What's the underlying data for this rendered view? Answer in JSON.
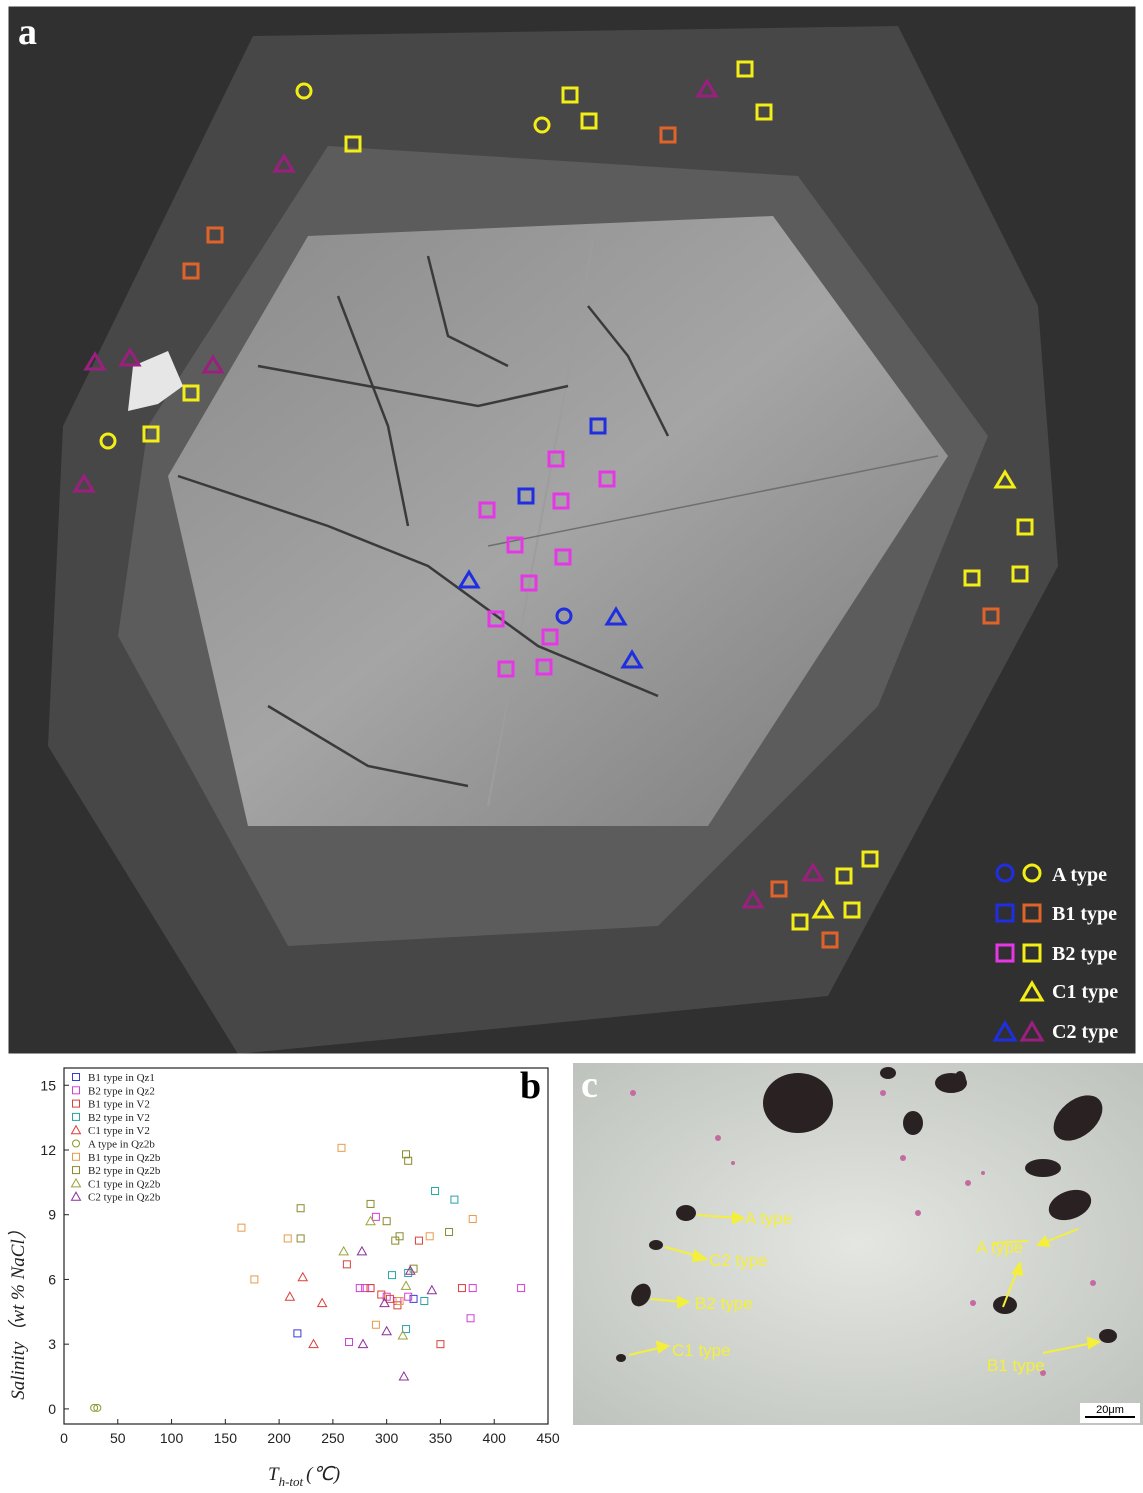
{
  "panels": {
    "a": {
      "letter": "a",
      "legend": [
        {
          "label": "A type"
        },
        {
          "label": "B1 type"
        },
        {
          "label": "B2 type"
        },
        {
          "label": "C1 type"
        },
        {
          "label": "C2 type"
        }
      ]
    },
    "b": {
      "letter": "b"
    },
    "c": {
      "letter": "c",
      "labels": [
        "A type",
        "C2 type",
        "B2 type",
        "C1 type",
        "A type",
        "B1 type"
      ],
      "scale_bar": "20μm"
    }
  },
  "colors": {
    "blue": "#1f2ee0",
    "orange": "#e0632a",
    "magenta": "#e637e6",
    "yellow": "#f2ee16",
    "purple": "#9b1f7e",
    "annotation": "#f4ef3b"
  },
  "chart_data": {
    "type": "scatter",
    "xlabel": "T",
    "xlabel_sub": "h-tot",
    "xlabel_unit": "(℃)",
    "ylabel": "Salinity（wt % NaCl）",
    "xlim": [
      0,
      450
    ],
    "ylim": [
      -0.7,
      15.8
    ],
    "xticks": [
      0,
      50,
      100,
      150,
      200,
      250,
      300,
      350,
      400,
      450
    ],
    "yticks": [
      0,
      3,
      6,
      9,
      12,
      15
    ],
    "legend_position": "top-left",
    "series": [
      {
        "name": "B1 type in Qz1",
        "marker": "square",
        "color": "#3a3ad6",
        "points": [
          [
            217,
            3.5
          ],
          [
            325,
            5.1
          ]
        ]
      },
      {
        "name": "B2 type in Qz2",
        "marker": "square",
        "color": "#d23fd2",
        "points": [
          [
            275,
            5.6
          ],
          [
            280,
            5.6
          ],
          [
            285,
            5.6
          ],
          [
            290,
            8.9
          ],
          [
            300,
            5.2
          ],
          [
            310,
            5.0
          ],
          [
            320,
            5.2
          ],
          [
            380,
            5.6
          ],
          [
            425,
            5.6
          ],
          [
            265,
            3.1
          ],
          [
            378,
            4.2
          ]
        ]
      },
      {
        "name": "B1 type in V2",
        "marker": "square",
        "color": "#d8413a",
        "points": [
          [
            263,
            6.7
          ],
          [
            285,
            5.6
          ],
          [
            295,
            5.3
          ],
          [
            303,
            5.1
          ],
          [
            330,
            7.8
          ],
          [
            350,
            3.0
          ],
          [
            370,
            5.6
          ],
          [
            310,
            4.8
          ]
        ]
      },
      {
        "name": "B2 type in V2",
        "marker": "square",
        "color": "#2aa3a3",
        "points": [
          [
            305,
            6.2
          ],
          [
            318,
            3.7
          ],
          [
            335,
            5.0
          ],
          [
            345,
            10.1
          ],
          [
            363,
            9.7
          ],
          [
            320,
            6.3
          ]
        ]
      },
      {
        "name": "C1 type in V2",
        "marker": "triangle",
        "color": "#d8413a",
        "points": [
          [
            210,
            5.2
          ],
          [
            222,
            6.1
          ],
          [
            232,
            3.0
          ],
          [
            240,
            4.9
          ]
        ]
      },
      {
        "name": "A  type in Qz2b",
        "marker": "circle",
        "color": "#8a9a2a",
        "points": [
          [
            28,
            0.05
          ],
          [
            31,
            0.05
          ]
        ]
      },
      {
        "name": "B1 type in Qz2b",
        "marker": "square",
        "color": "#e89a4c",
        "points": [
          [
            165,
            8.4
          ],
          [
            177,
            6.0
          ],
          [
            208,
            7.9
          ],
          [
            258,
            12.1
          ],
          [
            290,
            3.9
          ],
          [
            312,
            5.0
          ],
          [
            340,
            8.0
          ],
          [
            380,
            8.8
          ]
        ]
      },
      {
        "name": "B2 type in Qz2b",
        "marker": "square",
        "color": "#8a8a2e",
        "points": [
          [
            220,
            9.3
          ],
          [
            220,
            7.9
          ],
          [
            285,
            9.5
          ],
          [
            300,
            8.7
          ],
          [
            308,
            7.8
          ],
          [
            312,
            8.0
          ],
          [
            318,
            11.8
          ],
          [
            320,
            11.5
          ],
          [
            325,
            6.5
          ],
          [
            358,
            8.2
          ]
        ]
      },
      {
        "name": "C1 type in Qz2b",
        "marker": "triangle",
        "color": "#9aa23a",
        "points": [
          [
            260,
            7.3
          ],
          [
            285,
            8.7
          ],
          [
            315,
            3.4
          ],
          [
            318,
            5.7
          ]
        ]
      },
      {
        "name": "C2 type in Qz2b",
        "marker": "triangle",
        "color": "#8b2f9b",
        "points": [
          [
            277,
            7.3
          ],
          [
            278,
            3.0
          ],
          [
            298,
            4.9
          ],
          [
            300,
            3.6
          ],
          [
            316,
            1.5
          ],
          [
            322,
            6.4
          ],
          [
            342,
            5.5
          ]
        ]
      }
    ]
  }
}
